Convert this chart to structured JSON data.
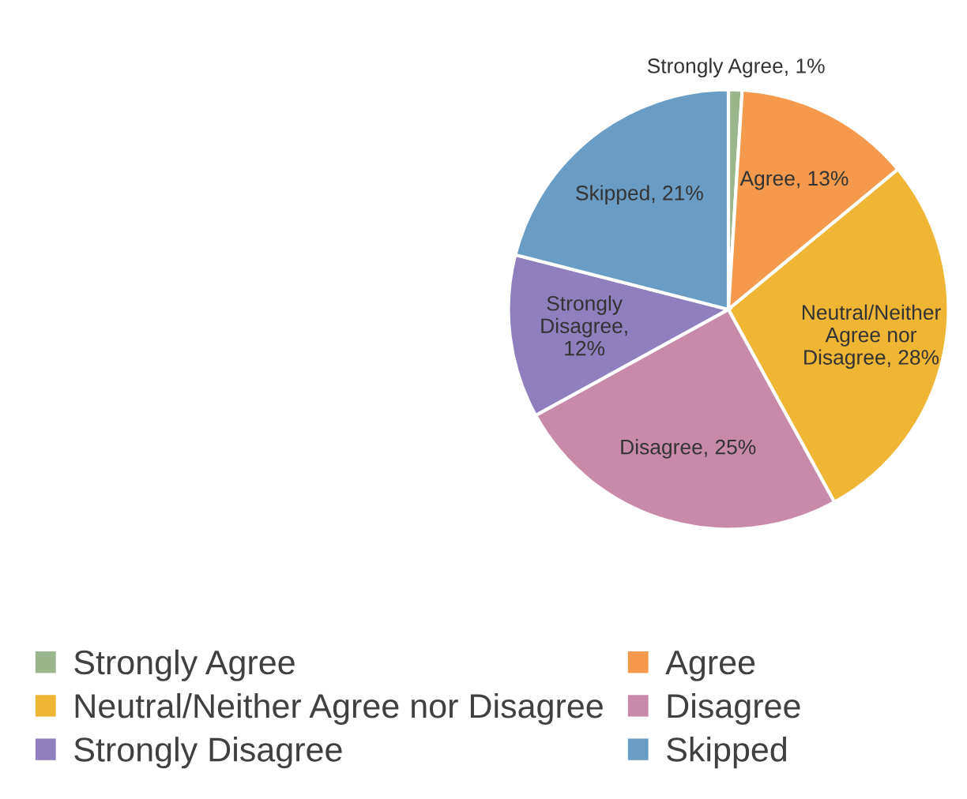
{
  "chart_data": {
    "type": "pie",
    "categories": [
      "Strongly Agree",
      "Agree",
      "Neutral/Neither Agree nor Disagree",
      "Disagree",
      "Strongly Disagree",
      "Skipped"
    ],
    "values": [
      1,
      13,
      28,
      25,
      12,
      21
    ],
    "colors": [
      "#9bb58c",
      "#f59a4c",
      "#efb534",
      "#c98aaa",
      "#8f7fbf",
      "#6a9dc6"
    ],
    "value_labels": [
      "Strongly Agree, 1%",
      "Agree, 13%",
      "Neutral/Neither\nAgree nor\nDisagree, 28%",
      "Disagree, 25%",
      "Strongly\nDisagree,\n12%",
      "Skipped, 21%"
    ],
    "legend": "bottom"
  }
}
